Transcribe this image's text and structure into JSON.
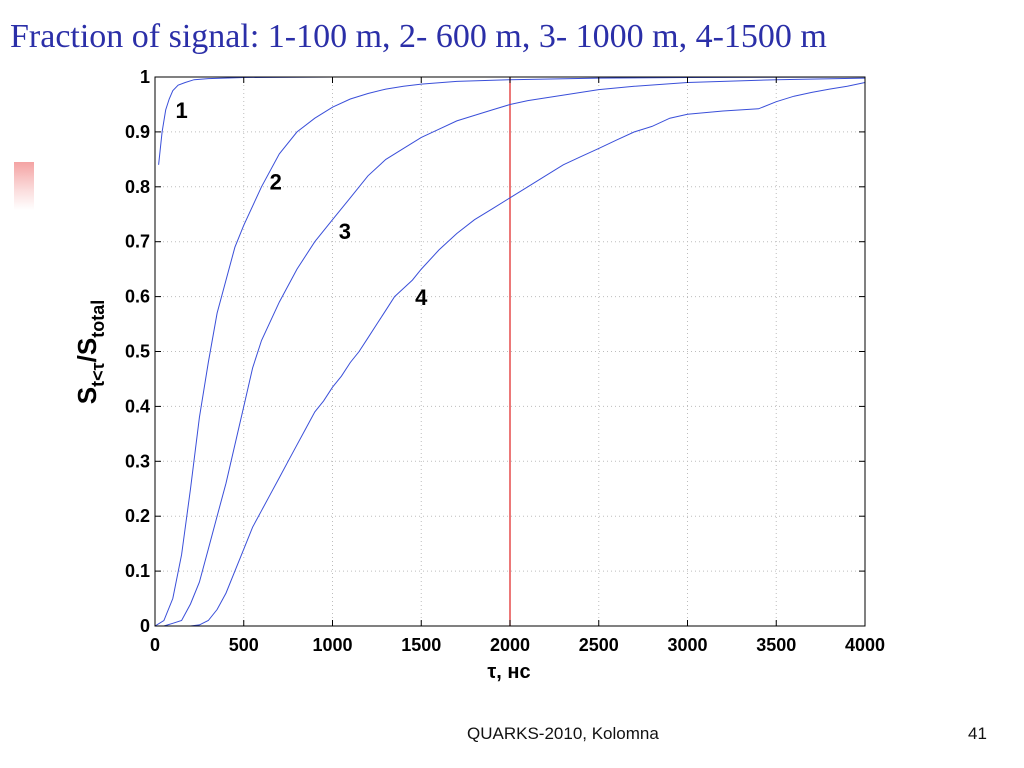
{
  "slide": {
    "title": "Fraction of signal: 1-100 m, 2- 600 m, 3- 1000 m, 4-1500 m",
    "footer": "QUARKS-2010, Kolomna",
    "page_number": "41",
    "title_color": "#2b2fa8"
  },
  "chart_data": {
    "type": "line",
    "xlabel": "τ, нс",
    "ylabel_main": "S",
    "ylabel_sub1": "t<τ",
    "ylabel_mid": "/S",
    "ylabel_sub2": "total",
    "xlim": [
      0,
      4000
    ],
    "ylim": [
      0,
      1
    ],
    "xticks": [
      0,
      500,
      1000,
      1500,
      2000,
      2500,
      3000,
      3500,
      4000
    ],
    "yticks": [
      0,
      0.1,
      0.2,
      0.3,
      0.4,
      0.5,
      0.6,
      0.7,
      0.8,
      0.9,
      1
    ],
    "grid": true,
    "line_color": "#3a4fd9",
    "marker_color": "#e23030",
    "vertical_line_x": 2000,
    "series": [
      {
        "name": "1",
        "label_at": [
          150,
          0.925
        ],
        "points": [
          [
            20,
            0.84
          ],
          [
            40,
            0.9
          ],
          [
            60,
            0.94
          ],
          [
            80,
            0.96
          ],
          [
            100,
            0.975
          ],
          [
            130,
            0.985
          ],
          [
            170,
            0.99
          ],
          [
            220,
            0.995
          ],
          [
            300,
            0.997
          ],
          [
            500,
            0.999
          ],
          [
            1000,
            1.0
          ],
          [
            4000,
            1.0
          ]
        ]
      },
      {
        "name": "2",
        "label_at": [
          680,
          0.795
        ],
        "points": [
          [
            0,
            0
          ],
          [
            50,
            0.01
          ],
          [
            100,
            0.05
          ],
          [
            150,
            0.13
          ],
          [
            200,
            0.25
          ],
          [
            250,
            0.38
          ],
          [
            300,
            0.48
          ],
          [
            350,
            0.57
          ],
          [
            400,
            0.63
          ],
          [
            450,
            0.69
          ],
          [
            500,
            0.73
          ],
          [
            600,
            0.8
          ],
          [
            700,
            0.86
          ],
          [
            800,
            0.9
          ],
          [
            900,
            0.925
          ],
          [
            1000,
            0.945
          ],
          [
            1100,
            0.96
          ],
          [
            1200,
            0.97
          ],
          [
            1300,
            0.978
          ],
          [
            1400,
            0.983
          ],
          [
            1500,
            0.987
          ],
          [
            1700,
            0.992
          ],
          [
            2000,
            0.995
          ],
          [
            2500,
            0.998
          ],
          [
            3000,
            0.999
          ],
          [
            4000,
            1.0
          ]
        ]
      },
      {
        "name": "3",
        "label_at": [
          1070,
          0.705
        ],
        "points": [
          [
            50,
            0
          ],
          [
            100,
            0.005
          ],
          [
            150,
            0.01
          ],
          [
            200,
            0.04
          ],
          [
            250,
            0.08
          ],
          [
            300,
            0.14
          ],
          [
            350,
            0.2
          ],
          [
            400,
            0.26
          ],
          [
            450,
            0.33
          ],
          [
            500,
            0.4
          ],
          [
            550,
            0.47
          ],
          [
            600,
            0.52
          ],
          [
            700,
            0.59
          ],
          [
            800,
            0.65
          ],
          [
            900,
            0.7
          ],
          [
            1000,
            0.74
          ],
          [
            1100,
            0.78
          ],
          [
            1200,
            0.82
          ],
          [
            1300,
            0.85
          ],
          [
            1400,
            0.87
          ],
          [
            1500,
            0.89
          ],
          [
            1600,
            0.905
          ],
          [
            1700,
            0.92
          ],
          [
            1800,
            0.93
          ],
          [
            1900,
            0.94
          ],
          [
            2000,
            0.95
          ],
          [
            2100,
            0.957
          ],
          [
            2200,
            0.962
          ],
          [
            2300,
            0.967
          ],
          [
            2400,
            0.972
          ],
          [
            2500,
            0.977
          ],
          [
            2700,
            0.983
          ],
          [
            3000,
            0.99
          ],
          [
            3500,
            0.995
          ],
          [
            4000,
            0.998
          ]
        ]
      },
      {
        "name": "4",
        "label_at": [
          1500,
          0.585
        ],
        "points": [
          [
            200,
            0
          ],
          [
            250,
            0.002
          ],
          [
            300,
            0.01
          ],
          [
            350,
            0.03
          ],
          [
            400,
            0.06
          ],
          [
            450,
            0.1
          ],
          [
            500,
            0.14
          ],
          [
            550,
            0.18
          ],
          [
            600,
            0.21
          ],
          [
            650,
            0.24
          ],
          [
            700,
            0.27
          ],
          [
            750,
            0.3
          ],
          [
            800,
            0.33
          ],
          [
            850,
            0.36
          ],
          [
            900,
            0.39
          ],
          [
            950,
            0.41
          ],
          [
            1000,
            0.435
          ],
          [
            1050,
            0.455
          ],
          [
            1100,
            0.48
          ],
          [
            1150,
            0.5
          ],
          [
            1200,
            0.525
          ],
          [
            1250,
            0.55
          ],
          [
            1300,
            0.575
          ],
          [
            1350,
            0.6
          ],
          [
            1400,
            0.615
          ],
          [
            1450,
            0.63
          ],
          [
            1500,
            0.65
          ],
          [
            1600,
            0.685
          ],
          [
            1700,
            0.715
          ],
          [
            1800,
            0.74
          ],
          [
            1900,
            0.76
          ],
          [
            2000,
            0.78
          ],
          [
            2100,
            0.8
          ],
          [
            2200,
            0.82
          ],
          [
            2300,
            0.84
          ],
          [
            2400,
            0.855
          ],
          [
            2500,
            0.87
          ],
          [
            2600,
            0.885
          ],
          [
            2700,
            0.9
          ],
          [
            2800,
            0.91
          ],
          [
            2900,
            0.925
          ],
          [
            3000,
            0.932
          ],
          [
            3200,
            0.938
          ],
          [
            3400,
            0.942
          ],
          [
            3500,
            0.955
          ],
          [
            3600,
            0.965
          ],
          [
            3700,
            0.972
          ],
          [
            3800,
            0.978
          ],
          [
            3900,
            0.983
          ],
          [
            4000,
            0.99
          ]
        ]
      }
    ]
  }
}
